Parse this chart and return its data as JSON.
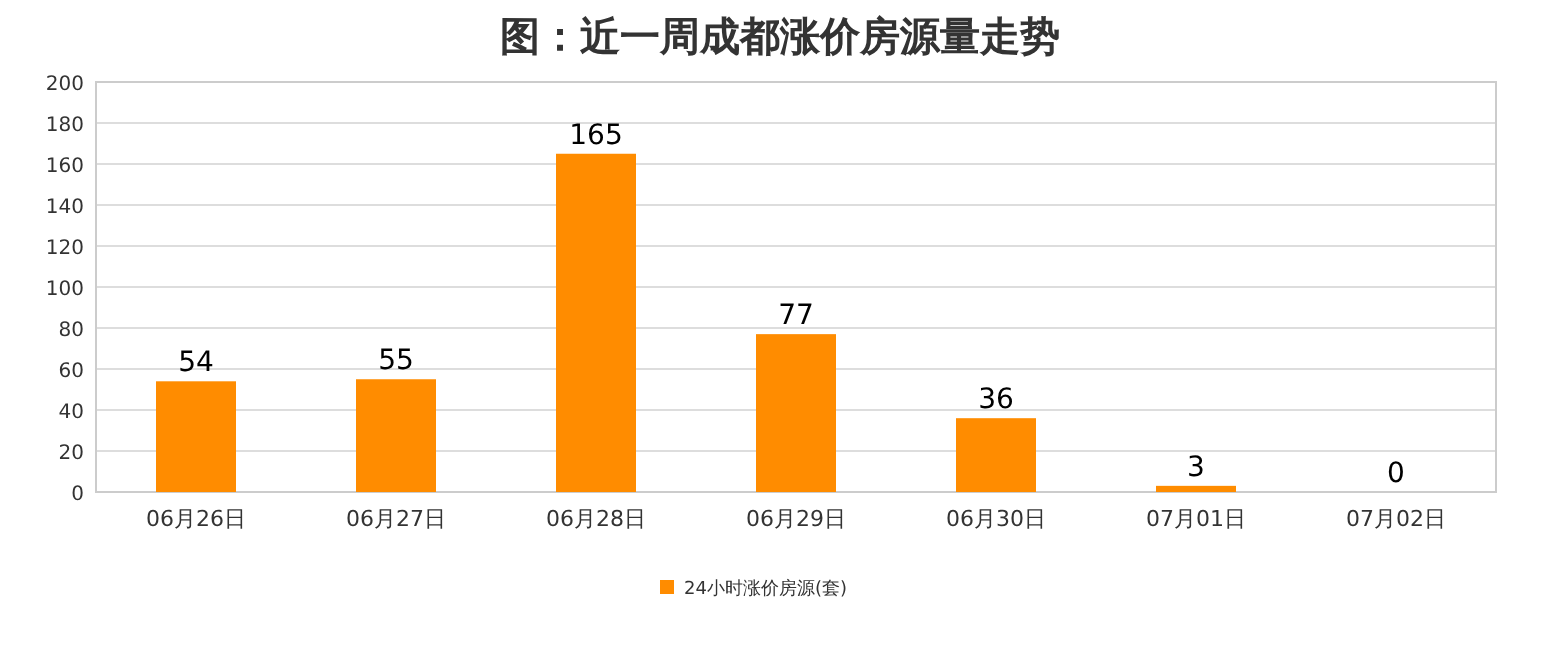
{
  "chart_data": {
    "type": "bar",
    "title": "图：近一周成都涨价房源量走势",
    "categories": [
      "06月26日",
      "06月27日",
      "06月28日",
      "06月29日",
      "06月30日",
      "07月01日",
      "07月02日"
    ],
    "series": [
      {
        "name": "24小时涨价房源(套)",
        "color": "#ff8c00",
        "values": [
          54,
          55,
          165,
          77,
          36,
          3,
          0
        ]
      }
    ],
    "ylim": [
      0,
      200
    ],
    "yticks": [
      0,
      20,
      40,
      60,
      80,
      100,
      120,
      140,
      160,
      180,
      200
    ],
    "grid": "y",
    "data_labels": true,
    "legend": "bottom"
  }
}
